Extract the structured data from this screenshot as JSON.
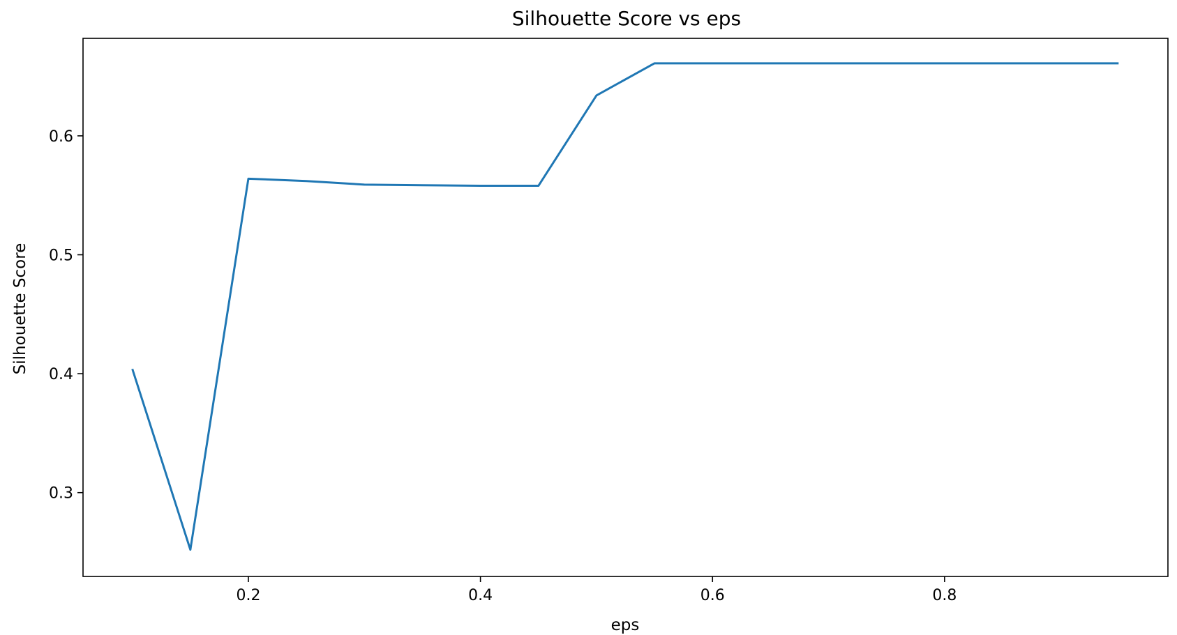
{
  "chart_data": {
    "type": "line",
    "title": "Silhouette Score vs eps",
    "xlabel": "eps",
    "ylabel": "Silhouette Score",
    "xlim": [
      0.0575,
      0.9925
    ],
    "ylim": [
      0.2295,
      0.682
    ],
    "xticks": [
      0.2,
      0.4,
      0.6,
      0.8
    ],
    "yticks": [
      0.3,
      0.4,
      0.5,
      0.6
    ],
    "xtick_labels": [
      "0.2",
      "0.4",
      "0.6",
      "0.8"
    ],
    "ytick_labels": [
      "0.3",
      "0.4",
      "0.5",
      "0.6"
    ],
    "grid": false,
    "legend": "none",
    "series": [
      {
        "color": "#1f77b4",
        "x": [
          0.1,
          0.15,
          0.2,
          0.25,
          0.3,
          0.35,
          0.4,
          0.45,
          0.5,
          0.55,
          0.6,
          0.65,
          0.7,
          0.75,
          0.8,
          0.85,
          0.9,
          0.95
        ],
        "y": [
          0.404,
          0.252,
          0.564,
          0.562,
          0.559,
          0.5585,
          0.558,
          0.558,
          0.634,
          0.661,
          0.661,
          0.661,
          0.661,
          0.661,
          0.661,
          0.661,
          0.661,
          0.661
        ]
      }
    ]
  }
}
